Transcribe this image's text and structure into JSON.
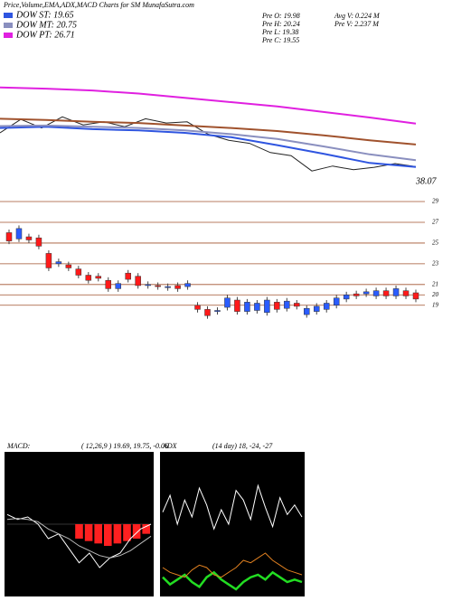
{
  "header": {
    "title": "Price,Volume,EMA,ADX,MACD Charts for SM MunafaSutra.com",
    "stats": [
      "Pre O: 19.98",
      "Pre H: 20.24",
      "Pre L: 19.38",
      "Pre C: 19.55",
      "Avg V: 0.224 M",
      "Pre V: 2.237 M"
    ]
  },
  "chart_data": [
    {
      "type": "line",
      "ylim": [
        15.2,
        38.0
      ],
      "annotation": "38.07",
      "series": [
        {
          "color": "#222222",
          "values": [
            25.2,
            27.4,
            26.0,
            27.8,
            26.5,
            27.0,
            26.2,
            27.5,
            26.8,
            27.0,
            25.0,
            24.0,
            23.5,
            22.0,
            21.5,
            19.0,
            19.8,
            19.2,
            19.6,
            20.2,
            19.7
          ]
        },
        {
          "color": "#a0522d",
          "values": [
            27.5,
            27.3,
            27.0,
            26.8,
            26.4,
            26.0,
            25.5,
            24.8,
            24.0,
            23.3
          ]
        },
        {
          "name": "DOW ST: 19.65",
          "color": "#2f55e0",
          "values": [
            26.0,
            26.2,
            25.8,
            25.6,
            25.2,
            24.5,
            23.2,
            21.8,
            20.3,
            19.65
          ]
        },
        {
          "name": "DOW MT: 20.75",
          "color": "#8a8fbf",
          "values": [
            26.3,
            26.4,
            26.2,
            26.0,
            25.6,
            25.0,
            24.2,
            23.0,
            21.7,
            20.75
          ]
        },
        {
          "name": "DOW PT: 26.71",
          "color": "#e020e0",
          "values": [
            32.6,
            32.4,
            32.1,
            31.6,
            30.9,
            30.2,
            29.5,
            28.6,
            27.7,
            26.71
          ]
        }
      ]
    },
    {
      "type": "candlestick",
      "ylim": [
        16.8,
        29.7
      ],
      "yticks": [
        29,
        27,
        25,
        23,
        21,
        20,
        19
      ],
      "up_color": "#2a5cff",
      "down_color": "#ff1a1a",
      "grid_color": "#a0522d",
      "open": [
        26.0,
        25.4,
        25.6,
        25.5,
        24.0,
        23.0,
        22.9,
        22.5,
        21.9,
        21.8,
        21.4,
        20.6,
        22.1,
        21.8,
        20.9,
        20.9,
        20.7,
        20.9,
        20.8,
        19.0,
        18.6,
        18.4,
        18.8,
        19.5,
        18.4,
        18.5,
        18.3,
        19.3,
        18.7,
        19.2,
        18.1,
        18.4,
        18.6,
        19.0,
        19.6,
        20.1,
        20.1,
        19.9,
        20.4,
        19.9,
        20.4,
        20.2
      ],
      "high": [
        26.3,
        26.7,
        25.9,
        25.8,
        24.3,
        23.5,
        23.2,
        22.8,
        22.2,
        22.1,
        21.7,
        21.4,
        22.4,
        22.1,
        21.3,
        21.2,
        21.1,
        21.2,
        21.4,
        19.3,
        18.9,
        18.8,
        20.0,
        19.8,
        19.6,
        19.5,
        19.8,
        19.6,
        19.7,
        19.5,
        19.0,
        19.2,
        19.5,
        20.0,
        20.3,
        20.4,
        20.6,
        20.7,
        20.7,
        20.9,
        20.7,
        20.5
      ],
      "low": [
        24.9,
        25.1,
        25.0,
        24.4,
        22.3,
        22.7,
        22.3,
        21.6,
        21.1,
        21.3,
        20.3,
        20.3,
        21.2,
        20.6,
        20.6,
        20.5,
        20.4,
        20.3,
        20.5,
        18.3,
        17.7,
        18.1,
        18.5,
        18.1,
        18.1,
        18.2,
        18.0,
        18.3,
        18.4,
        18.6,
        17.8,
        18.1,
        18.3,
        18.7,
        19.3,
        19.6,
        19.8,
        19.6,
        19.6,
        19.6,
        19.6,
        19.3
      ],
      "close": [
        25.2,
        26.4,
        25.3,
        24.7,
        22.6,
        23.2,
        22.6,
        21.9,
        21.4,
        21.6,
        20.6,
        21.1,
        21.5,
        20.9,
        21.0,
        20.8,
        20.8,
        20.6,
        21.1,
        18.6,
        18.0,
        18.5,
        19.7,
        18.4,
        19.3,
        19.2,
        19.5,
        18.6,
        19.4,
        18.9,
        18.7,
        18.9,
        19.2,
        19.7,
        20.0,
        19.9,
        20.3,
        20.4,
        19.9,
        20.6,
        19.9,
        19.6
      ]
    },
    {
      "type": "macd",
      "title": "MACD:",
      "subtitle": "( 12,26,9 ) 19.69, 19.75, -0.06",
      "ylim": [
        -1.5,
        1.5
      ],
      "series": [
        {
          "color": "#ffffff",
          "values": [
            0.2,
            0.1,
            0.15,
            0.0,
            -0.3,
            -0.2,
            -0.5,
            -0.8,
            -0.6,
            -0.9,
            -0.7,
            -0.6,
            -0.3,
            -0.1,
            0.0
          ]
        },
        {
          "color": "#bbbbbb",
          "values": [
            0.1,
            0.12,
            0.1,
            0.05,
            -0.1,
            -0.2,
            -0.3,
            -0.45,
            -0.55,
            -0.65,
            -0.7,
            -0.65,
            -0.55,
            -0.4,
            -0.25
          ]
        }
      ],
      "histogram": {
        "color": "#ff2020",
        "values": [
          0,
          0,
          0,
          0,
          0,
          0,
          0,
          -0.3,
          -0.35,
          -0.4,
          -0.45,
          -0.4,
          -0.35,
          -0.3,
          -0.2
        ]
      }
    },
    {
      "type": "adx",
      "title": "ADX",
      "subtitle": "(14 day) 18, -24, -27",
      "ylim": [
        0,
        60
      ],
      "series": [
        {
          "color": "#ffffff",
          "values": [
            35,
            42,
            30,
            40,
            33,
            45,
            38,
            28,
            36,
            30,
            44,
            40,
            32,
            46,
            37,
            29,
            41,
            34,
            38,
            33
          ]
        },
        {
          "color": "#22dd22",
          "values": [
            8,
            5,
            7,
            9,
            6,
            4,
            8,
            10,
            7,
            5,
            3,
            6,
            8,
            9,
            7,
            10,
            8,
            6,
            7,
            6
          ]
        },
        {
          "color": "#e08020",
          "values": [
            12,
            10,
            9,
            8,
            11,
            13,
            12,
            9,
            8,
            10,
            12,
            15,
            14,
            16,
            18,
            15,
            13,
            11,
            10,
            9
          ]
        }
      ]
    }
  ]
}
